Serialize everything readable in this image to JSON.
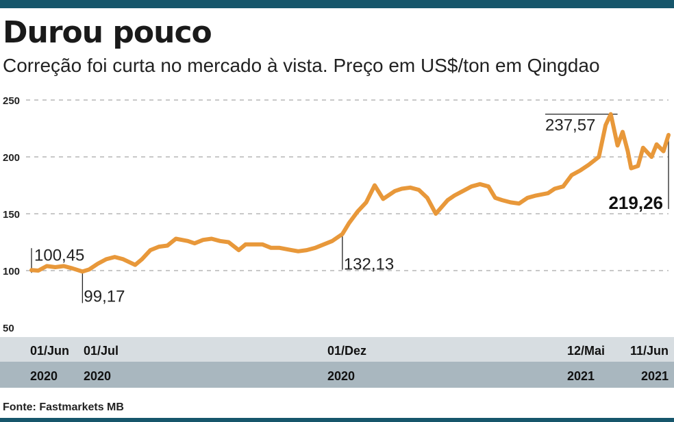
{
  "header": {
    "title": "Durou pouco",
    "subtitle": "Correção foi curta no mercado à vista. Preço em US$/ton em Qingdao"
  },
  "footer": {
    "source": "Fonte: Fastmarkets MB"
  },
  "colors": {
    "line": "#e8983a",
    "bar": "#16566b",
    "date_row": "#d7dde1",
    "year_row": "#a9b7bf"
  },
  "chart_data": {
    "type": "line",
    "title": "Durou pouco",
    "subtitle": "Correção foi curta no mercado à vista. Preço em US$/ton em Qingdao",
    "ylim": [
      50,
      250
    ],
    "y_ticks": [
      "250",
      "200",
      "150",
      "100",
      "50"
    ],
    "grid": true,
    "x_date_labels": [
      {
        "date": "01/Jun",
        "year": "2020"
      },
      {
        "date": "01/Jul",
        "year": "2020"
      },
      {
        "date": "01/Dez",
        "year": "2020"
      },
      {
        "date": "12/Mai",
        "year": "2021"
      },
      {
        "date": "11/Jun",
        "year": "2021"
      }
    ],
    "x": [
      "2020-06-01",
      "2020-06-05",
      "2020-06-10",
      "2020-06-15",
      "2020-06-20",
      "2020-06-25",
      "2020-07-01",
      "2020-07-05",
      "2020-07-10",
      "2020-07-15",
      "2020-07-20",
      "2020-07-25",
      "2020-08-01",
      "2020-08-05",
      "2020-08-10",
      "2020-08-15",
      "2020-08-20",
      "2020-08-25",
      "2020-09-01",
      "2020-09-05",
      "2020-09-10",
      "2020-09-15",
      "2020-09-20",
      "2020-09-25",
      "2020-10-01",
      "2020-10-05",
      "2020-10-10",
      "2020-10-15",
      "2020-10-20",
      "2020-10-25",
      "2020-11-01",
      "2020-11-05",
      "2020-11-10",
      "2020-11-15",
      "2020-11-20",
      "2020-11-25",
      "2020-12-01",
      "2020-12-05",
      "2020-12-10",
      "2020-12-15",
      "2020-12-20",
      "2020-12-25",
      "2021-01-01",
      "2021-01-05",
      "2021-01-10",
      "2021-01-15",
      "2021-01-20",
      "2021-01-25",
      "2021-02-01",
      "2021-02-05",
      "2021-02-10",
      "2021-02-15",
      "2021-02-20",
      "2021-02-25",
      "2021-03-01",
      "2021-03-05",
      "2021-03-10",
      "2021-03-15",
      "2021-03-20",
      "2021-03-25",
      "2021-04-01",
      "2021-04-05",
      "2021-04-10",
      "2021-04-15",
      "2021-04-20",
      "2021-04-25",
      "2021-05-01",
      "2021-05-05",
      "2021-05-08",
      "2021-05-12",
      "2021-05-15",
      "2021-05-18",
      "2021-05-20",
      "2021-05-24",
      "2021-05-27",
      "2021-06-01",
      "2021-06-04",
      "2021-06-08",
      "2021-06-11"
    ],
    "series": [
      {
        "values": [
          100.45,
          100,
          104,
          103,
          104,
          102,
          99.17,
          101,
          106,
          110,
          112,
          110,
          105,
          110,
          118,
          121,
          122,
          128,
          126,
          124,
          127,
          128,
          126,
          125,
          118,
          123,
          123,
          123,
          120,
          120,
          118,
          117,
          118,
          120,
          123,
          126,
          132.13,
          142,
          152,
          160,
          175,
          163,
          170,
          172,
          173,
          171,
          164,
          150,
          162,
          166,
          170,
          174,
          176,
          174,
          164,
          162,
          160,
          159,
          164,
          166,
          168,
          172,
          174,
          184,
          188,
          193,
          200,
          228,
          237.57,
          210,
          222,
          205,
          190,
          192,
          208,
          200,
          211,
          205,
          219.26
        ]
      }
    ],
    "annotations": [
      {
        "label": "100,45",
        "x": "2020-06-01",
        "value": 100.45,
        "bold": false
      },
      {
        "label": "99,17",
        "x": "2020-07-01",
        "value": 99.17,
        "bold": false
      },
      {
        "label": "132,13",
        "x": "2020-12-01",
        "value": 132.13,
        "bold": false
      },
      {
        "label": "237,57",
        "x": "2021-05-12",
        "value": 237.57,
        "bold": false
      },
      {
        "label": "219,26",
        "x": "2021-06-11",
        "value": 219.26,
        "bold": true
      }
    ],
    "source": "Fonte: Fastmarkets MB"
  }
}
